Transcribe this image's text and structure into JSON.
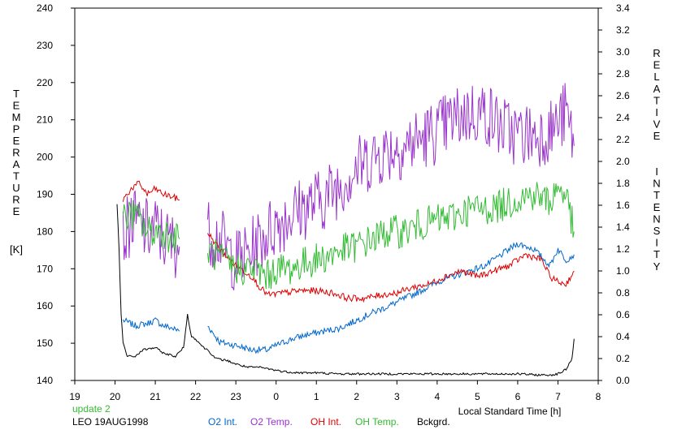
{
  "chart_data": {
    "type": "line",
    "title": "",
    "xlabel": "Local Standard Time [h]",
    "ylabel_left": [
      "T",
      "E",
      "M",
      "P",
      "E",
      "R",
      "A",
      "T",
      "U",
      "R",
      "E"
    ],
    "ylabel_left_unit": "[K]",
    "ylabel_right": [
      "R",
      "E",
      "L",
      "A",
      "T",
      "I",
      "V",
      "E",
      "",
      "",
      "I",
      "N",
      "T",
      "E",
      "N",
      "S",
      "I",
      "T",
      "Y"
    ],
    "x_ticks": [
      "19",
      "20",
      "21",
      "22",
      "23",
      "0",
      "1",
      "2",
      "3",
      "4",
      "5",
      "6",
      "7",
      "8"
    ],
    "xlim": [
      19,
      32
    ],
    "y_left_ticks": [
      "140",
      "150",
      "160",
      "170",
      "180",
      "190",
      "200",
      "210",
      "220",
      "230",
      "240"
    ],
    "ylim_left": [
      140,
      240
    ],
    "y_right_ticks": [
      "0.0",
      "0.2",
      "0.4",
      "0.6",
      "0.8",
      "1.0",
      "1.2",
      "1.4",
      "1.6",
      "1.8",
      "2.0",
      "2.2",
      "2.4",
      "2.6",
      "2.8",
      "3.0",
      "3.2",
      "3.4"
    ],
    "ylim_right": [
      0.0,
      3.4
    ],
    "grid": false,
    "series": [
      {
        "name": "O2 Int.",
        "color": "#0066cc",
        "axis": "right",
        "points": [
          [
            20.2,
            0.55
          ],
          [
            20.5,
            0.5
          ],
          [
            20.8,
            0.52
          ],
          [
            21.0,
            0.55
          ],
          [
            21.2,
            0.5
          ],
          [
            21.4,
            0.48
          ],
          [
            21.6,
            0.45
          ],
          [
            22.3,
            0.5
          ],
          [
            22.6,
            0.35
          ],
          [
            23.0,
            0.32
          ],
          [
            23.4,
            0.28
          ],
          [
            23.8,
            0.28
          ],
          [
            24.0,
            0.32
          ],
          [
            24.4,
            0.38
          ],
          [
            24.8,
            0.42
          ],
          [
            25.2,
            0.45
          ],
          [
            25.6,
            0.48
          ],
          [
            26.0,
            0.55
          ],
          [
            26.4,
            0.62
          ],
          [
            26.8,
            0.68
          ],
          [
            27.2,
            0.75
          ],
          [
            27.6,
            0.82
          ],
          [
            28.0,
            0.9
          ],
          [
            28.4,
            0.95
          ],
          [
            28.8,
            1.0
          ],
          [
            29.2,
            1.05
          ],
          [
            29.6,
            1.15
          ],
          [
            30.0,
            1.25
          ],
          [
            30.4,
            1.2
          ],
          [
            30.8,
            1.05
          ],
          [
            31.0,
            1.2
          ],
          [
            31.2,
            1.1
          ],
          [
            31.4,
            1.15
          ]
        ]
      },
      {
        "name": "O2 Temp.",
        "color": "#9933cc",
        "axis": "left",
        "points": [
          [
            20.2,
            178
          ],
          [
            20.4,
            183
          ],
          [
            20.6,
            182
          ],
          [
            20.8,
            180
          ],
          [
            21.0,
            181
          ],
          [
            21.2,
            178
          ],
          [
            21.4,
            177
          ],
          [
            21.6,
            176
          ],
          [
            22.3,
            180
          ],
          [
            22.6,
            178
          ],
          [
            23.0,
            172
          ],
          [
            23.4,
            175
          ],
          [
            23.8,
            180
          ],
          [
            24.0,
            182
          ],
          [
            24.4,
            185
          ],
          [
            24.8,
            187
          ],
          [
            25.2,
            189
          ],
          [
            25.6,
            193
          ],
          [
            26.0,
            197
          ],
          [
            26.4,
            200
          ],
          [
            26.8,
            202
          ],
          [
            27.2,
            203
          ],
          [
            27.6,
            205
          ],
          [
            28.0,
            207
          ],
          [
            28.4,
            210
          ],
          [
            28.8,
            212
          ],
          [
            29.2,
            212
          ],
          [
            29.6,
            208
          ],
          [
            30.0,
            206
          ],
          [
            30.4,
            206
          ],
          [
            30.8,
            207
          ],
          [
            31.0,
            209
          ],
          [
            31.2,
            212
          ],
          [
            31.4,
            203
          ]
        ]
      },
      {
        "name": "OH Int.",
        "color": "#dd0000",
        "axis": "right",
        "points": [
          [
            20.2,
            1.65
          ],
          [
            20.4,
            1.75
          ],
          [
            20.6,
            1.8
          ],
          [
            20.8,
            1.7
          ],
          [
            21.0,
            1.75
          ],
          [
            21.2,
            1.7
          ],
          [
            21.4,
            1.68
          ],
          [
            21.6,
            1.65
          ],
          [
            22.3,
            1.35
          ],
          [
            22.6,
            1.2
          ],
          [
            23.0,
            1.05
          ],
          [
            23.4,
            0.95
          ],
          [
            23.6,
            0.85
          ],
          [
            23.8,
            0.78
          ],
          [
            24.2,
            0.8
          ],
          [
            24.6,
            0.82
          ],
          [
            25.0,
            0.82
          ],
          [
            25.4,
            0.8
          ],
          [
            25.8,
            0.75
          ],
          [
            26.2,
            0.75
          ],
          [
            26.6,
            0.78
          ],
          [
            27.0,
            0.8
          ],
          [
            27.4,
            0.85
          ],
          [
            27.8,
            0.88
          ],
          [
            28.2,
            0.95
          ],
          [
            28.6,
            1.0
          ],
          [
            29.0,
            0.95
          ],
          [
            29.4,
            1.0
          ],
          [
            29.8,
            1.05
          ],
          [
            30.2,
            1.15
          ],
          [
            30.6,
            1.1
          ],
          [
            30.8,
            0.95
          ],
          [
            31.0,
            0.9
          ],
          [
            31.2,
            0.88
          ],
          [
            31.4,
            1.0
          ]
        ]
      },
      {
        "name": "OH Temp.",
        "color": "#33bb33",
        "axis": "left",
        "points": [
          [
            20.2,
            183
          ],
          [
            20.4,
            185
          ],
          [
            20.6,
            183
          ],
          [
            20.8,
            180
          ],
          [
            21.0,
            180
          ],
          [
            21.2,
            180
          ],
          [
            21.4,
            178
          ],
          [
            21.6,
            178
          ],
          [
            22.3,
            175
          ],
          [
            22.6,
            173
          ],
          [
            23.0,
            170
          ],
          [
            23.4,
            170
          ],
          [
            23.8,
            168
          ],
          [
            24.0,
            170
          ],
          [
            24.4,
            170
          ],
          [
            24.8,
            172
          ],
          [
            25.2,
            173
          ],
          [
            25.6,
            175
          ],
          [
            26.0,
            176
          ],
          [
            26.4,
            178
          ],
          [
            26.8,
            180
          ],
          [
            27.2,
            180
          ],
          [
            27.6,
            182
          ],
          [
            28.0,
            183
          ],
          [
            28.4,
            184
          ],
          [
            28.8,
            186
          ],
          [
            29.2,
            186
          ],
          [
            29.6,
            187
          ],
          [
            30.0,
            189
          ],
          [
            30.4,
            190
          ],
          [
            30.8,
            188
          ],
          [
            31.0,
            192
          ],
          [
            31.2,
            190
          ],
          [
            31.4,
            180
          ]
        ]
      },
      {
        "name": "Bckgrd.",
        "color": "#000000",
        "axis": "right",
        "points": [
          [
            20.05,
            1.6
          ],
          [
            20.1,
            1.2
          ],
          [
            20.15,
            0.6
          ],
          [
            20.2,
            0.35
          ],
          [
            20.3,
            0.22
          ],
          [
            20.5,
            0.22
          ],
          [
            20.7,
            0.28
          ],
          [
            21.0,
            0.3
          ],
          [
            21.2,
            0.25
          ],
          [
            21.5,
            0.22
          ],
          [
            21.7,
            0.3
          ],
          [
            21.8,
            0.6
          ],
          [
            21.9,
            0.4
          ],
          [
            22.0,
            0.38
          ],
          [
            22.2,
            0.3
          ],
          [
            22.3,
            0.28
          ],
          [
            22.5,
            0.2
          ],
          [
            22.8,
            0.18
          ],
          [
            23.0,
            0.15
          ],
          [
            23.3,
            0.12
          ],
          [
            23.6,
            0.12
          ],
          [
            23.9,
            0.1
          ],
          [
            24.2,
            0.08
          ],
          [
            24.6,
            0.07
          ],
          [
            25.0,
            0.07
          ],
          [
            25.5,
            0.06
          ],
          [
            26.0,
            0.06
          ],
          [
            26.5,
            0.06
          ],
          [
            27.0,
            0.06
          ],
          [
            27.5,
            0.06
          ],
          [
            28.0,
            0.06
          ],
          [
            28.5,
            0.06
          ],
          [
            29.0,
            0.06
          ],
          [
            29.5,
            0.06
          ],
          [
            30.0,
            0.06
          ],
          [
            30.5,
            0.05
          ],
          [
            30.8,
            0.05
          ],
          [
            31.0,
            0.06
          ],
          [
            31.2,
            0.1
          ],
          [
            31.35,
            0.2
          ],
          [
            31.4,
            0.38
          ]
        ]
      }
    ]
  },
  "footer": {
    "update": "update 2",
    "update_color": "#33bb33",
    "station": "LEO 19AUG1998",
    "legend": [
      {
        "label": "O2 Int.",
        "color": "#0066cc"
      },
      {
        "label": "O2 Temp.",
        "color": "#9933cc"
      },
      {
        "label": "OH Int.",
        "color": "#dd0000"
      },
      {
        "label": "OH Temp.",
        "color": "#33bb33"
      },
      {
        "label": "Bckgrd.",
        "color": "#000000"
      }
    ]
  }
}
